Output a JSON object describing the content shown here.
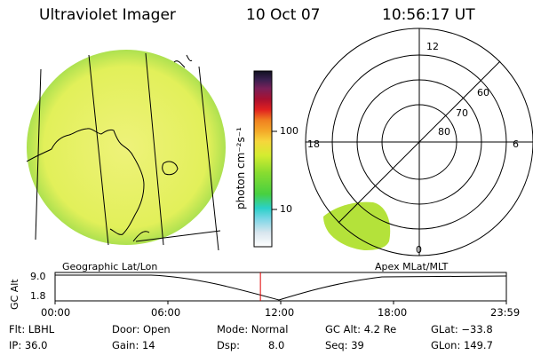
{
  "header": {
    "instrument": "Ultraviolet Imager",
    "date": "10 Oct 07",
    "time": "10:56:17 UT"
  },
  "colorbar": {
    "unit": "photon cm⁻²s⁻¹",
    "ticks": [
      "100",
      "10"
    ]
  },
  "polar": {
    "mlt_labels": [
      "12",
      "18",
      "6",
      "0"
    ],
    "lat_labels": [
      "60",
      "70",
      "80"
    ]
  },
  "panel_labels": {
    "geographic": "Geographic Lat/Lon",
    "apex": "Apex MLat/MLT"
  },
  "orbit_plot": {
    "ylabel": "GC Alt",
    "yticks": [
      "9.0",
      "1.8"
    ],
    "xticks": [
      "00:00",
      "06:00",
      "12:00",
      "18:00",
      "23:59"
    ],
    "current_time_fraction": 0.455
  },
  "status": {
    "filter": "Flt: LBHL",
    "door": "Door: Open",
    "mode": "Mode: Normal",
    "gc_alt": "GC Alt: 4.2 Re",
    "glat": "GLat: −33.8",
    "ip": "IP: 36.0",
    "gain": "Gain: 14",
    "dsp_label": "Dsp:",
    "dsp_value": "8.0",
    "seq": "Seq: 39",
    "glon": "GLon: 149.7"
  },
  "colors": {
    "earth_fill": "#d8ee44",
    "polar_fill": "#b4e23a",
    "time_marker": "#e00000"
  }
}
